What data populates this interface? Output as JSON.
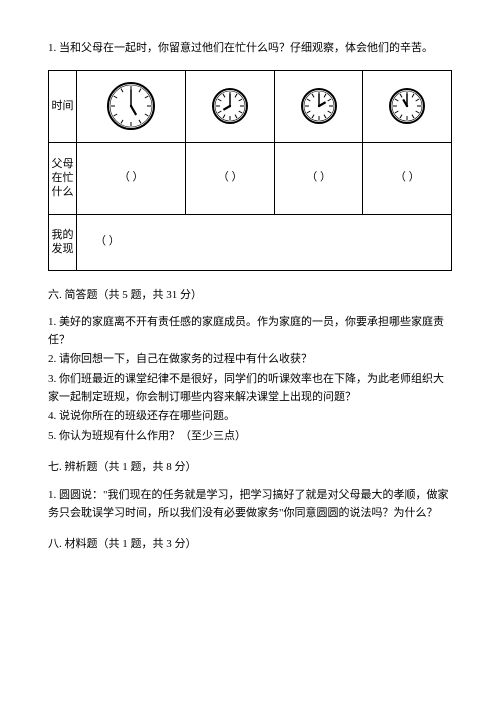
{
  "intro": {
    "text": "1. 当和父母在一起时，你留意过他们在忙什么吗？仔细观察，体会他们的辛苦。"
  },
  "table": {
    "row_labels": {
      "time": "时间",
      "busy": "父母在忙什么",
      "discover": "我的发现"
    },
    "clocks": [
      {
        "hour": 5,
        "minute": 0,
        "size": 50
      },
      {
        "hour": 8,
        "minute": 0,
        "size": 38
      },
      {
        "hour": 2,
        "minute": 0,
        "size": 38
      },
      {
        "hour": 11,
        "minute": 0,
        "size": 38
      }
    ],
    "blank_text": "（        ）"
  },
  "section6": {
    "title": "六. 简答题（共 5 题，共 31 分）",
    "items": [
      "1. 美好的家庭离不开有责任感的家庭成员。作为家庭的一员，你要承担哪些家庭责任？",
      "2. 请你回想一下，自己在做家务的过程中有什么收获？",
      "3. 你们班最近的课堂纪律不是很好，同学们的听课效率也在下降，为此老师组织大家一起制定班规，你会制订哪些内容来解决课堂上出现的问题？",
      "4. 说说你所在的班级还存在哪些问题。",
      "5. 你认为班规有什么作用？（至少三点）"
    ]
  },
  "section7": {
    "title": "七. 辨析题（共 1 题，共 8 分）",
    "items": [
      "1. 圆圆说：\"我们现在的任务就是学习，把学习搞好了就是对父母最大的孝顺，做家务只会耽误学习时间，所以我们没有必要做家务\"你同意圆圆的说法吗？为什么？"
    ]
  },
  "section8": {
    "title": "八. 材料题（共 1 题，共 3 分）"
  },
  "clock_style": {
    "face_fill": "#ffffff",
    "outer_stroke": "#000000",
    "outer_width": 2,
    "tick_stroke": "#000000",
    "hand_stroke": "#000000",
    "hour_hand_len": 0.45,
    "minute_hand_len": 0.72,
    "center_dot_r": 1.2
  }
}
